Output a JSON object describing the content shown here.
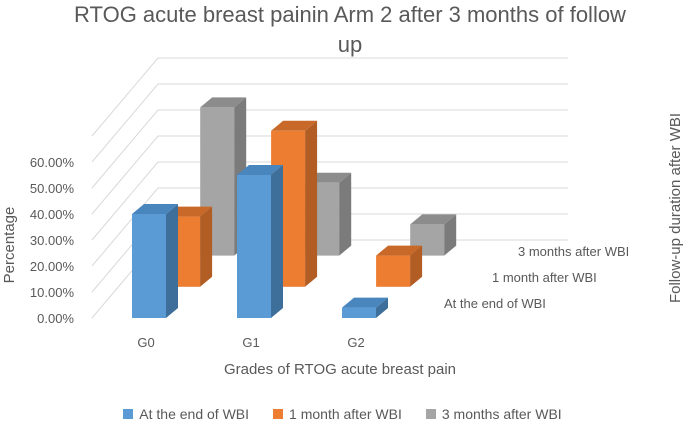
{
  "title": "RTOG acute breast painin Arm 2 after 3 months of follow up",
  "chart_data": {
    "type": "bar",
    "subtype": "3d-column",
    "title": "RTOG acute breast painin Arm 2 after 3 months of follow up",
    "xlabel": "Grades of RTOG acute breast pain",
    "ylabel": "Percentage",
    "zlabel": "Follow-up duration after WBI",
    "categories": [
      "G0",
      "G1",
      "G2"
    ],
    "y_ticks": [
      "0.00%",
      "10.00%",
      "20.00%",
      "30.00%",
      "40.00%",
      "50.00%",
      "60.00%"
    ],
    "ylim": [
      0,
      60
    ],
    "series": [
      {
        "name": "At the end of WBI",
        "values": [
          40,
          55,
          4
        ],
        "color": "#5B9BD5",
        "side": "#3E6E9A",
        "top": "#4A86BE"
      },
      {
        "name": "1 month after WBI",
        "values": [
          27,
          60,
          12
        ],
        "color": "#ED7D31",
        "side": "#B25D24",
        "top": "#C8692A"
      },
      {
        "name": "3 months after WBI",
        "values": [
          57,
          28,
          12
        ],
        "color": "#A5A5A5",
        "side": "#7B7B7B",
        "top": "#8C8C8C"
      }
    ],
    "legend_position": "bottom",
    "grid": true
  }
}
